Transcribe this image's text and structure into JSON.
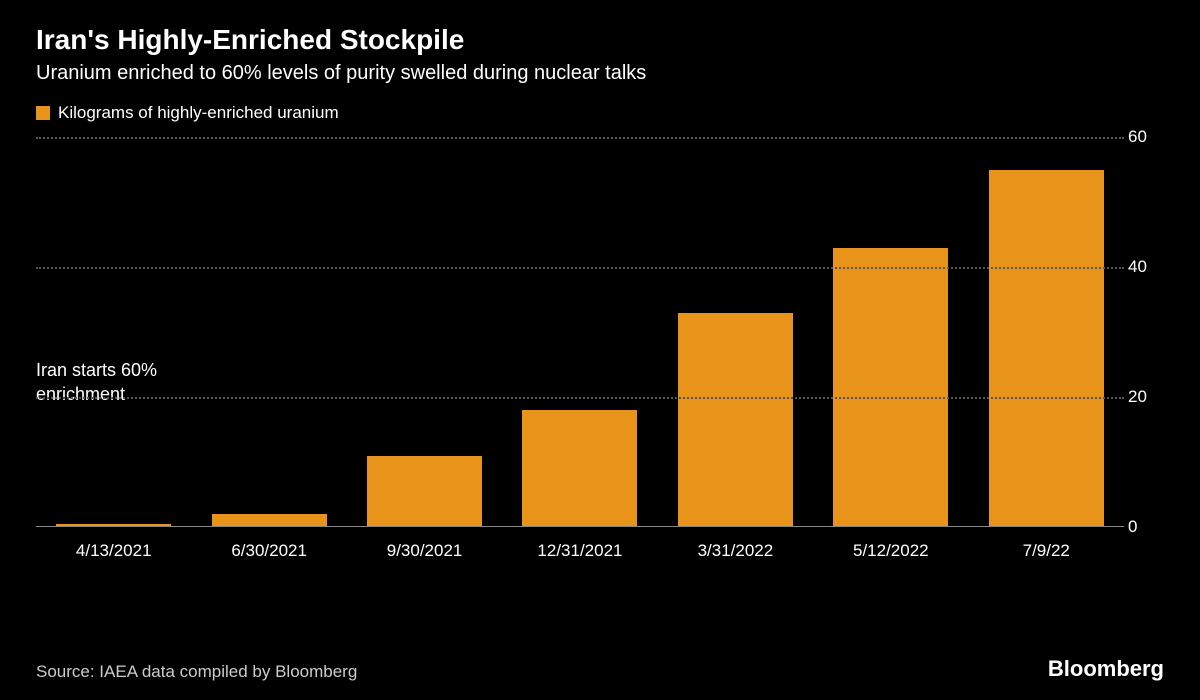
{
  "title": "Iran's Highly-Enriched Stockpile",
  "subtitle": "Uranium enriched to 60% levels of purity swelled during nuclear talks",
  "legend": {
    "swatch_color": "#e8941a",
    "label": "Kilograms of highly-enriched uranium"
  },
  "chart": {
    "type": "bar",
    "categories": [
      "4/13/2021",
      "6/30/2021",
      "9/30/2021",
      "12/31/2021",
      "3/31/2022",
      "5/12/2022",
      "7/9/22"
    ],
    "values": [
      0.5,
      2,
      11,
      18,
      33,
      43,
      55
    ],
    "bar_color": "#e8941a",
    "ylim": [
      0,
      60
    ],
    "ytick_step": 20,
    "yticks": [
      0,
      20,
      40,
      60
    ],
    "background_color": "#000000",
    "grid_color": "#555555",
    "baseline_color": "#888888",
    "text_color": "#ffffff",
    "bar_width_ratio": 0.74,
    "title_fontsize": 28,
    "subtitle_fontsize": 20,
    "axis_fontsize": 17,
    "annotation": {
      "text_line1": "Iran starts 60%",
      "text_line2": "enrichment",
      "left_pct": 0,
      "y_value": 26
    }
  },
  "source": "Source: IAEA data compiled by Bloomberg",
  "brand": "Bloomberg"
}
